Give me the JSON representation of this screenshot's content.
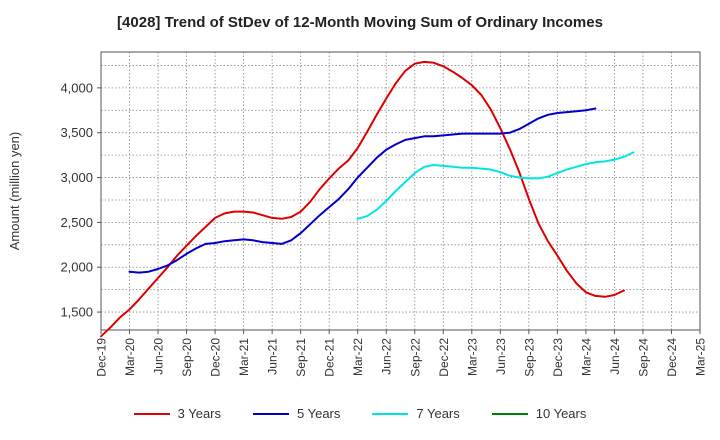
{
  "chart_data": {
    "type": "line",
    "title": "[4028]  Trend of StDev of 12-Month Moving Sum of Ordinary Incomes",
    "xlabel": "",
    "ylabel": "Amount (million yen)",
    "ylim": [
      1300,
      4400
    ],
    "yticks": [
      1500,
      2000,
      2500,
      3000,
      3500,
      4000
    ],
    "ytick_labels": [
      "1,500",
      "2,000",
      "2,500",
      "3,000",
      "3,500",
      "4,000"
    ],
    "xtick_labels": [
      "Dec-19",
      "Mar-20",
      "Jun-20",
      "Sep-20",
      "Dec-20",
      "Mar-21",
      "Jun-21",
      "Sep-21",
      "Dec-21",
      "Mar-22",
      "Jun-22",
      "Sep-22",
      "Dec-22",
      "Mar-23",
      "Jun-23",
      "Sep-23",
      "Dec-23",
      "Mar-24",
      "Jun-24",
      "Sep-24",
      "Dec-24",
      "Mar-25"
    ],
    "grid": true,
    "series": [
      {
        "name": "3 Years",
        "color": "#dd0000",
        "start_month_index": 0,
        "values": [
          1230,
          1330,
          1440,
          1530,
          1640,
          1760,
          1880,
          2000,
          2130,
          2240,
          2350,
          2450,
          2550,
          2600,
          2620,
          2620,
          2610,
          2580,
          2550,
          2540,
          2560,
          2620,
          2730,
          2870,
          2990,
          3100,
          3190,
          3330,
          3510,
          3700,
          3880,
          4050,
          4190,
          4270,
          4290,
          4280,
          4240,
          4180,
          4110,
          4030,
          3920,
          3760,
          3550,
          3320,
          3060,
          2760,
          2490,
          2290,
          2130,
          1960,
          1820,
          1720,
          1680,
          1670,
          1690,
          1740
        ]
      },
      {
        "name": "5 Years",
        "color": "#0000cc",
        "start_month_index": 3,
        "values": [
          1950,
          1940,
          1950,
          1980,
          2020,
          2080,
          2150,
          2210,
          2260,
          2270,
          2290,
          2300,
          2310,
          2300,
          2280,
          2270,
          2260,
          2300,
          2380,
          2480,
          2580,
          2670,
          2760,
          2870,
          3000,
          3110,
          3220,
          3310,
          3370,
          3420,
          3440,
          3460,
          3460,
          3470,
          3480,
          3490,
          3490,
          3490,
          3490,
          3490,
          3500,
          3540,
          3600,
          3660,
          3700,
          3720,
          3730,
          3740,
          3750,
          3770
        ]
      },
      {
        "name": "7 Years",
        "color": "#00e5e5",
        "start_month_index": 27,
        "values": [
          2540,
          2570,
          2640,
          2740,
          2850,
          2950,
          3050,
          3120,
          3140,
          3130,
          3120,
          3110,
          3110,
          3100,
          3090,
          3060,
          3020,
          3000,
          2990,
          2990,
          3010,
          3050,
          3090,
          3120,
          3150,
          3170,
          3180,
          3200,
          3230,
          3280
        ]
      },
      {
        "name": "10 Years",
        "color": "#008000",
        "start_month_index": 0,
        "values": []
      }
    ]
  }
}
